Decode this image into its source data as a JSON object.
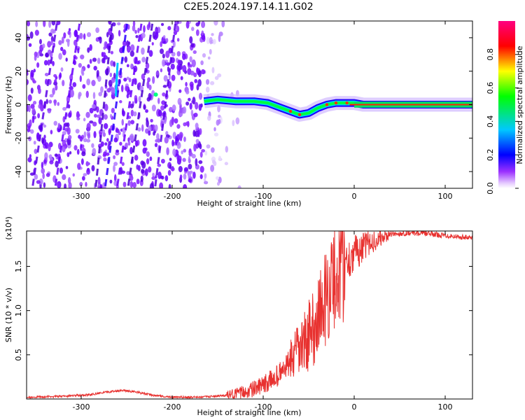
{
  "title": "C2E5.2024.197.14.11.G02",
  "chart_data": [
    {
      "type": "heatmap",
      "xlabel": "Height of straight line (km)",
      "ylabel": "Frequency (Hz)",
      "xlim": [
        -360,
        130
      ],
      "ylim": [
        -50,
        50
      ],
      "xticks": [
        -300,
        -200,
        -100,
        0,
        100
      ],
      "xtick_labels": [
        "-300",
        "-200",
        "-100",
        "0",
        "100"
      ],
      "yticks": [
        -40,
        -20,
        0,
        20,
        40
      ],
      "ytick_labels": [
        "-40",
        "-20",
        "0",
        "20",
        "40"
      ],
      "colorbar": {
        "label": "Normalized spectral amplitude",
        "range": [
          0,
          1
        ],
        "ticks": [
          0.0,
          0.2,
          0.4,
          0.6,
          0.8
        ],
        "tick_labels": [
          "0.0",
          "0.2",
          "0.4",
          "0.6",
          "0.8"
        ],
        "colormap": [
          "#ffffff",
          "#7a00ff",
          "#0000ff",
          "#00c8ff",
          "#00ff00",
          "#ffff00",
          "#ff0000",
          "#ff0080"
        ]
      },
      "signal_track": {
        "x": [
          -165,
          -150,
          -130,
          -110,
          -95,
          -80,
          -70,
          -60,
          -50,
          -40,
          -30,
          -20,
          -10,
          0,
          10,
          50,
          100,
          130
        ],
        "y": [
          2,
          3,
          2,
          2,
          1,
          -2,
          -4,
          -6,
          -5,
          -2,
          0,
          1,
          1,
          1,
          0,
          0,
          0,
          0
        ]
      }
    },
    {
      "type": "line",
      "xlabel": "Height of straight line (km)",
      "ylabel": "SNR (10 * v/v)",
      "multiplier_label": "(x10⁴)",
      "xlim": [
        -360,
        130
      ],
      "ylim": [
        0,
        1.9
      ],
      "xticks": [
        -300,
        -200,
        -100,
        0,
        100
      ],
      "xtick_labels": [
        "-300",
        "-200",
        "-100",
        "0",
        "100"
      ],
      "yticks": [
        0.5,
        1.0,
        1.5
      ],
      "ytick_labels": [
        "0.5",
        "1.0",
        "1.5"
      ],
      "color": "#e8312f",
      "series": [
        {
          "x": [
            -360,
            -320,
            -290,
            -270,
            -255,
            -240,
            -220,
            -200,
            -170,
            -140,
            -120,
            -100,
            -80,
            -60,
            -45,
            -35,
            -25,
            -15,
            0,
            20,
            40,
            60,
            80,
            100,
            130
          ],
          "values": [
            0.02,
            0.03,
            0.05,
            0.08,
            0.1,
            0.08,
            0.04,
            0.02,
            0.02,
            0.04,
            0.08,
            0.15,
            0.3,
            0.55,
            0.8,
            1.05,
            1.3,
            1.5,
            1.65,
            1.78,
            1.86,
            1.88,
            1.87,
            1.85,
            1.82
          ]
        }
      ]
    }
  ]
}
